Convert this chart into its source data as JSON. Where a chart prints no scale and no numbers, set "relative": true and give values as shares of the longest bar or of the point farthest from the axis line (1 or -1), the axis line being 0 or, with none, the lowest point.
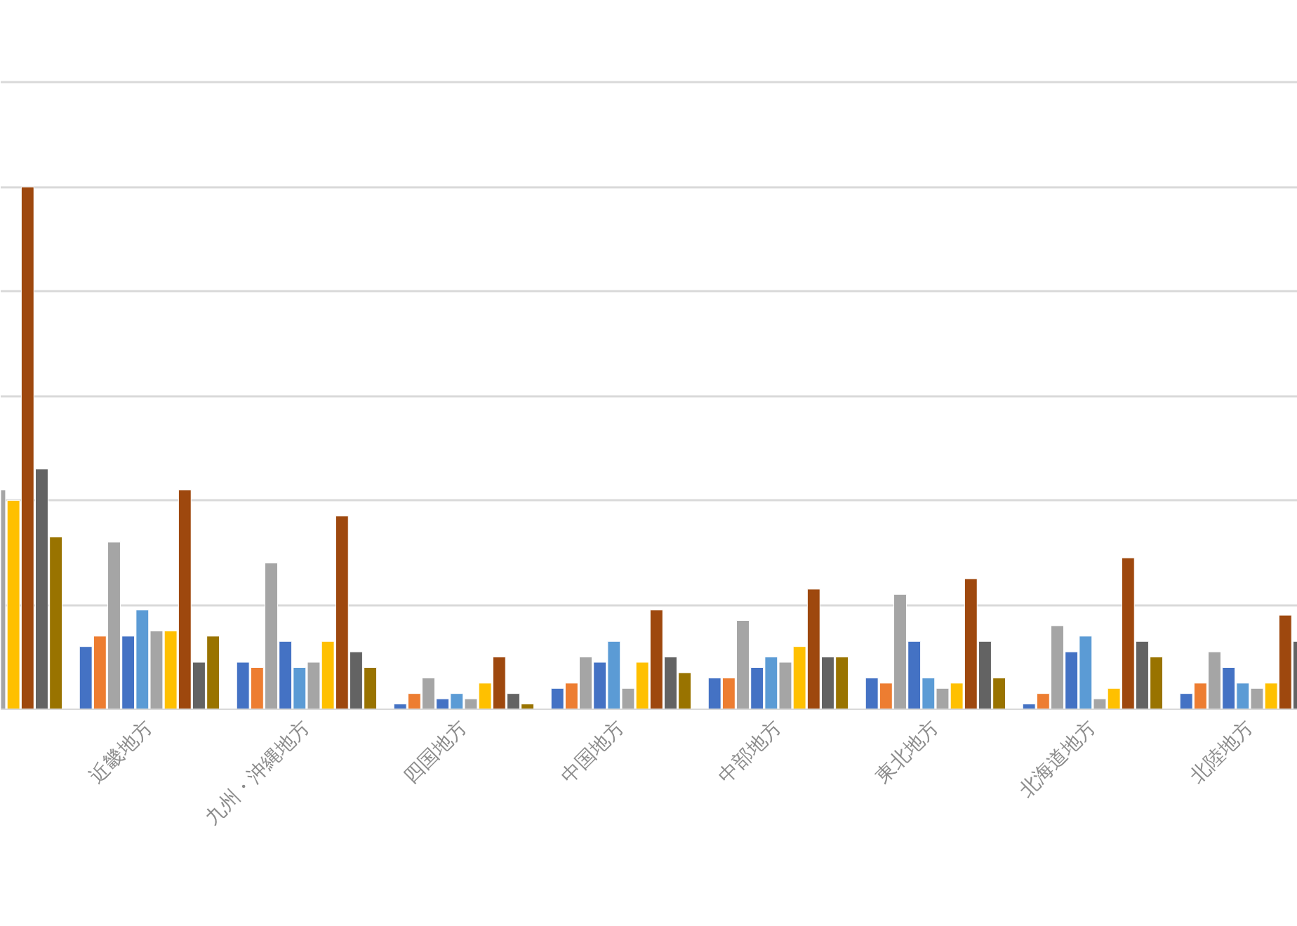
{
  "chart_data": {
    "type": "bar",
    "relative": true,
    "grid": "y",
    "categories": [
      null,
      "近畿地方",
      "九州・沖縄地方",
      "四国地方",
      "中国地方",
      "中部地方",
      "東北地方",
      "北海道地方",
      "北陸地方"
    ],
    "series": [
      {
        "color": "#4472c4",
        "values": [
          null,
          0.12,
          0.09,
          0.01,
          0.04,
          0.06,
          0.06,
          0.01,
          0.03
        ]
      },
      {
        "color": "#ed7d31",
        "values": [
          null,
          0.14,
          0.08,
          0.03,
          0.05,
          0.06,
          0.05,
          0.03,
          0.05
        ]
      },
      {
        "color": "#a5a5a5",
        "values": [
          null,
          0.32,
          0.28,
          0.06,
          0.1,
          0.17,
          0.22,
          0.16,
          0.11
        ]
      },
      {
        "color": "#4472c4",
        "values": [
          null,
          0.14,
          0.13,
          0.02,
          0.09,
          0.08,
          0.13,
          0.11,
          0.08
        ]
      },
      {
        "color": "#5b9bd5",
        "values": [
          null,
          0.19,
          0.08,
          0.03,
          0.13,
          0.1,
          0.06,
          0.14,
          0.05
        ]
      },
      {
        "color": "#a5a5a5",
        "values": [
          0.42,
          0.15,
          0.09,
          0.02,
          0.04,
          0.09,
          0.04,
          0.02,
          0.04
        ]
      },
      {
        "color": "#ffc000",
        "values": [
          0.4,
          0.15,
          0.13,
          0.05,
          0.09,
          0.12,
          0.05,
          0.04,
          0.05
        ]
      },
      {
        "color": "#9e480e",
        "values": [
          1,
          0.42,
          0.37,
          0.1,
          0.19,
          0.23,
          0.25,
          0.29,
          0.18
        ]
      },
      {
        "color": "#636363",
        "values": [
          0.46,
          0.09,
          0.11,
          0.03,
          0.1,
          0.1,
          0.13,
          0.13,
          0.13
        ]
      },
      {
        "color": "#997300",
        "values": [
          0.33,
          0.14,
          0.08,
          0.01,
          0.07,
          0.1,
          0.06,
          0.1,
          null
        ]
      }
    ]
  }
}
